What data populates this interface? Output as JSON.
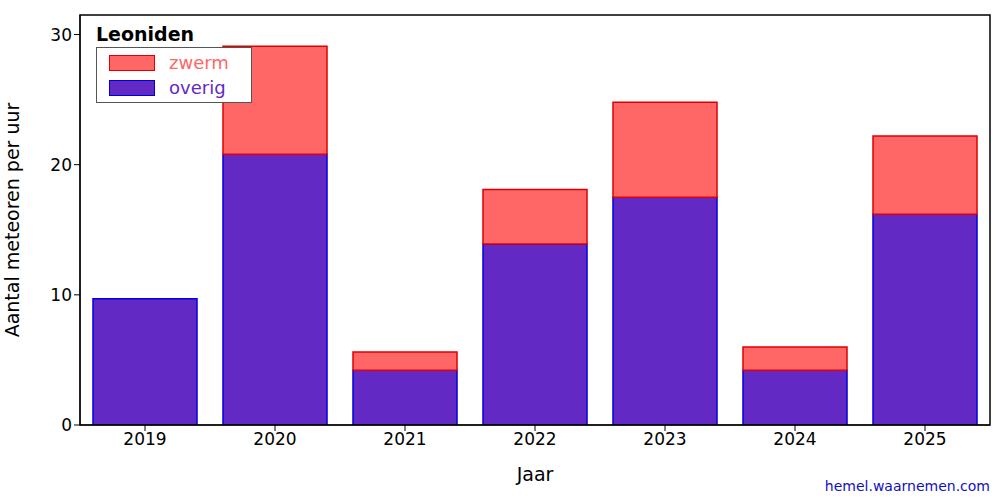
{
  "chart_data": {
    "type": "bar",
    "title": "Leoniden",
    "x_label": "Jaar",
    "y_label": "Aantal meteoren per uur",
    "source": "hemel.waarnemen.com",
    "categories": [
      "2019",
      "2020",
      "2021",
      "2022",
      "2023",
      "2024",
      "2025"
    ],
    "series": [
      {
        "name": "overig",
        "color": "#6329c4",
        "values": [
          9.7,
          20.8,
          4.2,
          13.9,
          17.5,
          4.2,
          16.2
        ]
      },
      {
        "name": "zwerm",
        "color": "#ff6666",
        "values": [
          0,
          8.3,
          1.4,
          4.2,
          7.3,
          1.8,
          6.0
        ]
      }
    ],
    "stacked": true,
    "legend": "upper left",
    "ylim": [
      0,
      31.5
    ],
    "yticks": [
      0,
      10,
      20,
      30
    ],
    "grid": false
  }
}
